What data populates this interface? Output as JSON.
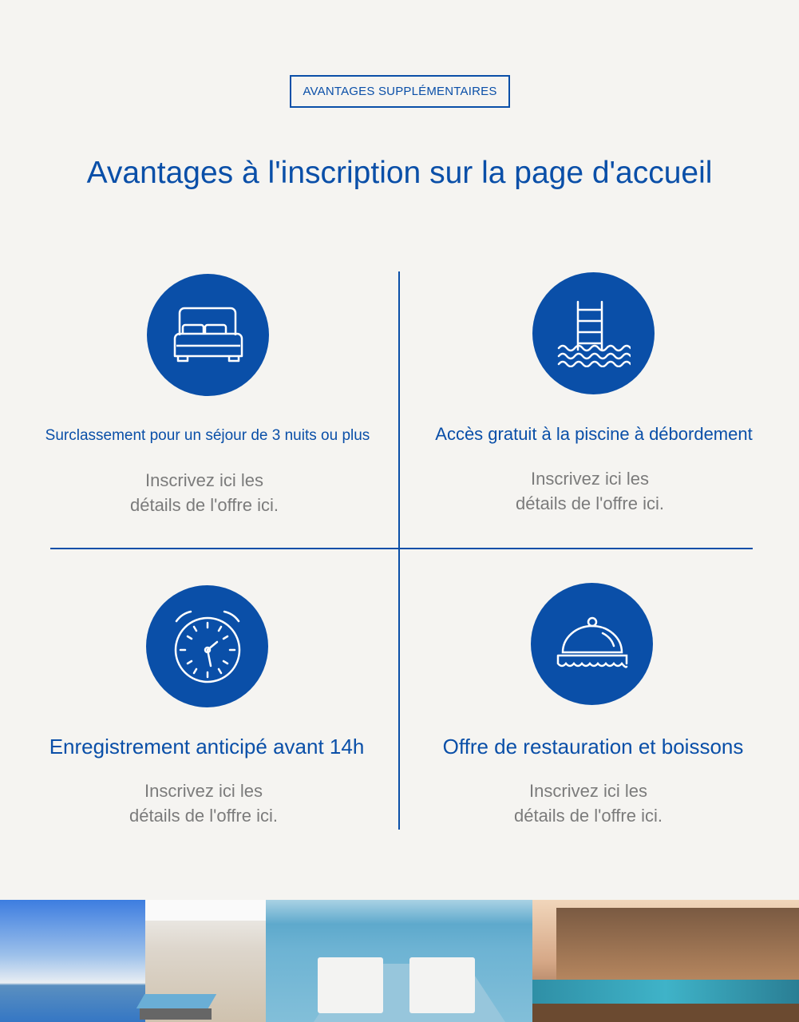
{
  "badge": "AVANTAGES SUPPLÉMENTAIRES",
  "title": "Avantages à l'inscription sur la page d'accueil",
  "colors": {
    "accent": "#0a4fa8",
    "background": "#f5f4f1",
    "body_text": "#7b7b7b"
  },
  "benefits": [
    {
      "icon": "bed-icon",
      "title": "Surclassement pour un séjour de 3 nuits ou plus",
      "line1": "Inscrivez ici les",
      "line2": "détails de l'offre ici."
    },
    {
      "icon": "pool-ladder-icon",
      "title": "Accès gratuit à la piscine à débordement",
      "line1": "Inscrivez ici les",
      "line2": "détails de l'offre ici."
    },
    {
      "icon": "clock-icon",
      "title": "Enregistrement anticipé avant 14h",
      "line1": "Inscrivez ici les",
      "line2": "détails de l'offre ici."
    },
    {
      "icon": "cloche-icon",
      "title": "Offre de restauration et boissons",
      "line1": "Inscrivez ici les",
      "line2": "détails de l'offre ici."
    }
  ],
  "photos": [
    "infinity-pool-terrace-photo",
    "pool-loungers-photo",
    "cliffside-villa-photo"
  ]
}
